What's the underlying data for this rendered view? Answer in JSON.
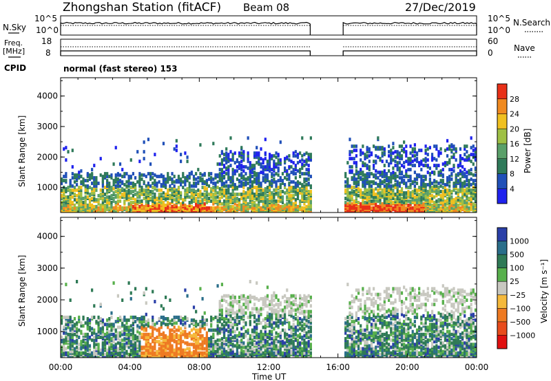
{
  "header": {
    "station": "Zhongshan Station (fitACF)",
    "beam": "Beam 08",
    "date": "27/Dec/2019"
  },
  "summary": {
    "nsky_label": "N.Sky",
    "nsky_ticks": [
      "10^5",
      "10^0"
    ],
    "nsearch_label": "N.Search",
    "nsearch_ticks": [
      "10^5",
      "10^0"
    ],
    "freq_label": "Freq.",
    "freq_unit": "[MHz]",
    "freq_ticks": [
      "18",
      "8"
    ],
    "nave_label": "Nave",
    "nave_ticks": [
      "60",
      "0"
    ],
    "cpid_label": "CPID",
    "cpid_text": "normal (fast stereo) 153"
  },
  "chart_data": [
    {
      "type": "heatmap",
      "name": "power",
      "xlabel": "Time UT",
      "ylabel": "Slant Range [km]",
      "xticks": [
        "00:00",
        "04:00",
        "08:00",
        "12:00",
        "16:00",
        "20:00",
        "00:00"
      ],
      "xlim_hours": [
        0,
        24
      ],
      "yticks": [
        1000,
        2000,
        3000,
        4000
      ],
      "ylim": [
        180,
        4600
      ],
      "data_gap_hours": [
        14.4,
        16.3
      ],
      "colorbar": {
        "label": "Power [dB]",
        "ticks": [
          "4",
          "8",
          "12",
          "16",
          "20",
          "24",
          "28"
        ],
        "range": [
          0,
          30
        ],
        "colors": [
          "#1f22ee",
          "#2050b8",
          "#2f7a5a",
          "#5aa069",
          "#9fc045",
          "#f0c020",
          "#f08a20",
          "#e83018"
        ]
      }
    },
    {
      "type": "heatmap",
      "name": "velocity",
      "xlabel": "Time UT",
      "ylabel": "Slant Range [km]",
      "xticks": [
        "00:00",
        "04:00",
        "08:00",
        "12:00",
        "16:00",
        "20:00",
        "00:00"
      ],
      "xlim_hours": [
        0,
        24
      ],
      "yticks": [
        1000,
        2000,
        3000,
        4000
      ],
      "ylim": [
        180,
        4600
      ],
      "data_gap_hours": [
        14.4,
        16.3
      ],
      "colorbar": {
        "label": "Velocity [m s⁻¹]",
        "ticks": [
          "1000",
          "500",
          "100",
          "25",
          "−25",
          "−100",
          "−500",
          "−1000"
        ],
        "colors": [
          "#2a3fa8",
          "#2a6e8a",
          "#2f7a56",
          "#58b04c",
          "#c8c8c0",
          "#f5b93b",
          "#ee7a22",
          "#e84c1c",
          "#e01010"
        ]
      }
    }
  ]
}
